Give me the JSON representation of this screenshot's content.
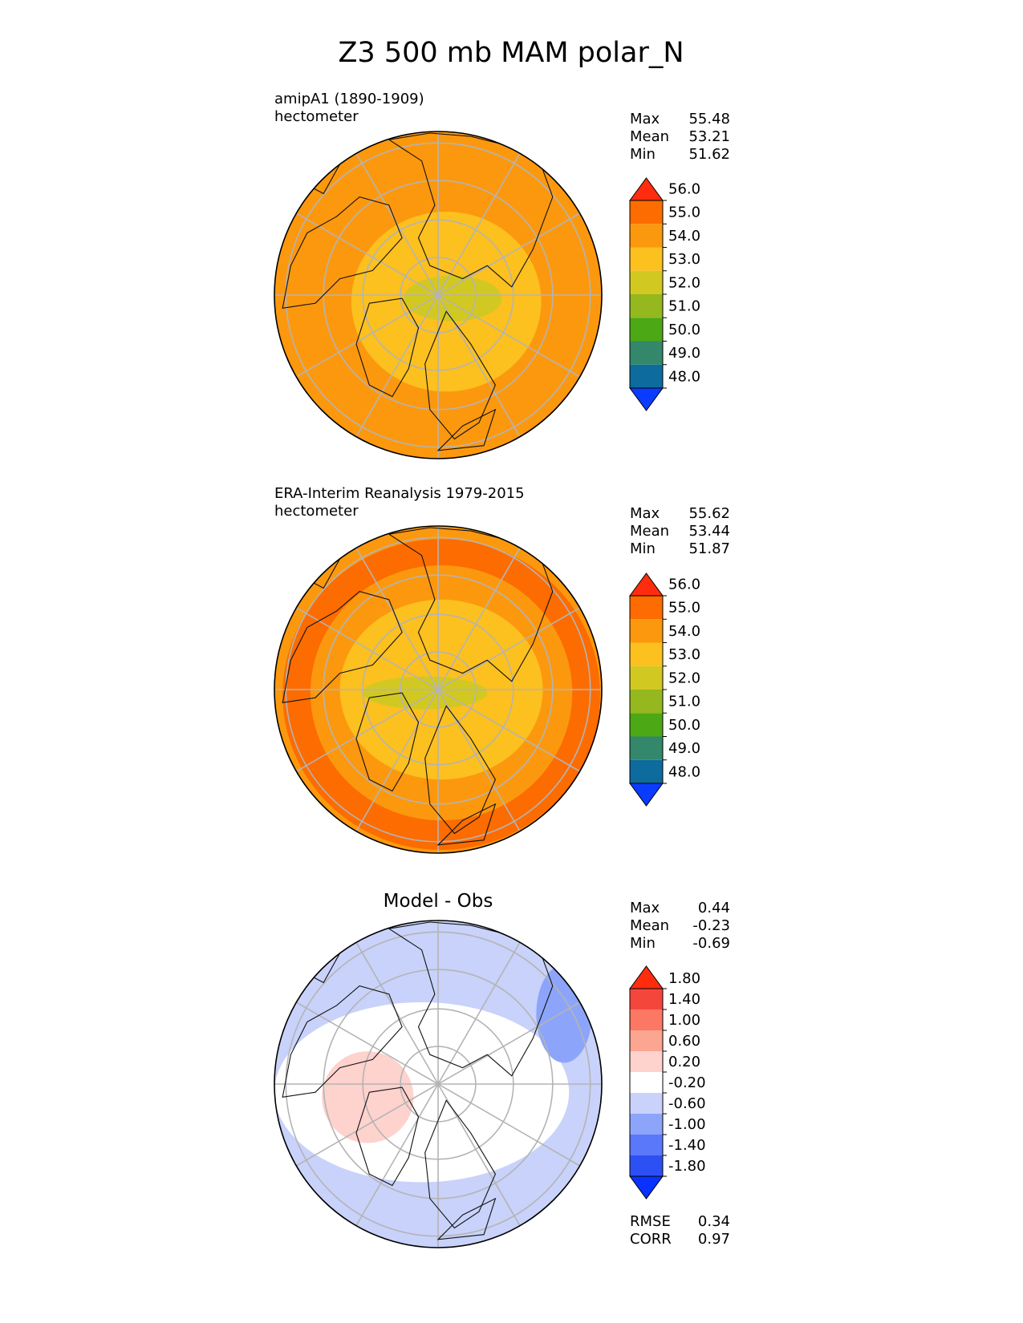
{
  "chart_data": {
    "type": "heatmap",
    "title": "Z3 500 mb MAM polar_N",
    "projection": "north-polar-stereographic",
    "panels": [
      {
        "id": "test",
        "title": "",
        "left_label": "amipA1 (1890-1909)",
        "units": "hectometer",
        "stats": [
          [
            "Max",
            "55.48"
          ],
          [
            "Mean",
            "53.21"
          ],
          [
            "Min",
            "51.62"
          ]
        ],
        "levels": [
          48.0,
          49.0,
          50.0,
          51.0,
          52.0,
          53.0,
          54.0,
          55.0,
          56.0
        ],
        "tick_labels": [
          "48.0",
          "49.0",
          "50.0",
          "51.0",
          "52.0",
          "53.0",
          "54.0",
          "55.0",
          "56.0"
        ],
        "colors": [
          "#0a3cff",
          "#0d6b9e",
          "#33876a",
          "#4ca814",
          "#94b81e",
          "#d2c822",
          "#fcc01f",
          "#fc980e",
          "#fc6c00",
          "#ff2d0d"
        ],
        "field": [
          {
            "level": 54.0,
            "rx": 0.96,
            "ry": 0.96,
            "cx": -0.04,
            "cy": -0.05
          },
          {
            "level": 53.0,
            "rx": 0.58,
            "ry": 0.55,
            "cx": 0.05,
            "cy": -0.04
          },
          {
            "level": 52.0,
            "rx": 0.3,
            "ry": 0.14,
            "cx": 0.09,
            "cy": -0.02
          }
        ]
      },
      {
        "id": "reference",
        "title": "",
        "left_label": "ERA-Interim Reanalysis 1979-2015",
        "units": "hectometer",
        "stats": [
          [
            "Max",
            "55.62"
          ],
          [
            "Mean",
            "53.44"
          ],
          [
            "Min",
            "51.87"
          ]
        ],
        "levels": [
          48.0,
          49.0,
          50.0,
          51.0,
          52.0,
          53.0,
          54.0,
          55.0,
          56.0
        ],
        "tick_labels": [
          "48.0",
          "49.0",
          "50.0",
          "51.0",
          "52.0",
          "53.0",
          "54.0",
          "55.0",
          "56.0"
        ],
        "colors": [
          "#0a3cff",
          "#0d6b9e",
          "#33876a",
          "#4ca814",
          "#94b81e",
          "#d2c822",
          "#fcc01f",
          "#fc980e",
          "#fc6c00",
          "#ff2d0d"
        ],
        "field": [
          {
            "level": 55.0,
            "rx": 0.97,
            "ry": 0.95,
            "cx": 0.02,
            "cy": -0.03
          },
          {
            "level": 54.0,
            "rx": 0.8,
            "ry": 0.78,
            "cx": 0.02,
            "cy": -0.02
          },
          {
            "level": 53.0,
            "rx": 0.62,
            "ry": 0.55,
            "cx": 0.02,
            "cy": 0.0
          },
          {
            "level": 52.0,
            "rx": 0.38,
            "ry": 0.1,
            "cx": -0.08,
            "cy": -0.02
          }
        ]
      },
      {
        "id": "diff",
        "title": "Model - Obs",
        "left_label": "",
        "units": "",
        "stats": [
          [
            "Max",
            "0.44"
          ],
          [
            "Mean",
            "-0.23"
          ],
          [
            "Min",
            "-0.69"
          ]
        ],
        "levels": [
          -1.8,
          -1.4,
          -1.0,
          -0.6,
          -0.2,
          0.2,
          0.6,
          1.0,
          1.4,
          1.8
        ],
        "tick_labels": [
          "-1.80",
          "-1.40",
          "-1.00",
          "-0.60",
          "-0.20",
          "0.20",
          "0.60",
          "1.00",
          "1.40",
          "1.80"
        ],
        "colors": [
          "#0a32ff",
          "#2d50f5",
          "#5a78fa",
          "#8ca5fa",
          "#c8d2fa",
          "#ffffff",
          "#fed2cd",
          "#fca591",
          "#fc7864",
          "#f5463c",
          "#ff2d0d"
        ],
        "field": [
          {
            "level": 0.2,
            "rx": 0.28,
            "ry": 0.28,
            "cx": -0.43,
            "cy": -0.08
          },
          {
            "level": -1.0,
            "rx": 0.17,
            "ry": 0.3,
            "cx": 0.77,
            "cy": 0.43
          }
        ],
        "footer_stats": [
          [
            "RMSE",
            "0.34"
          ],
          [
            "CORR",
            "0.97"
          ]
        ]
      }
    ]
  }
}
